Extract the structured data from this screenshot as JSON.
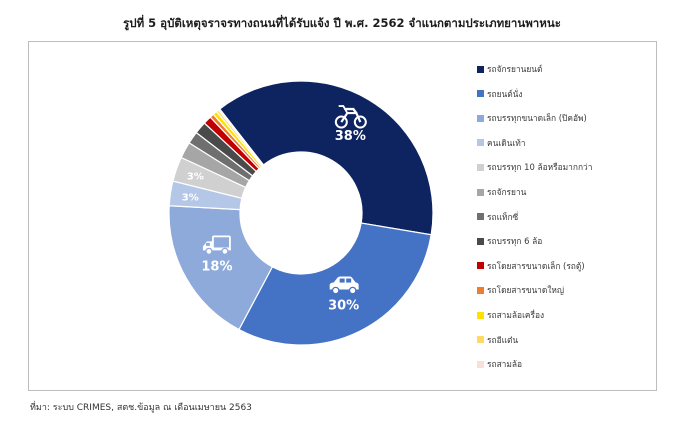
{
  "title": "รูปที่ 5 อุบัติเหตุจราจรทางถนนที่ได้รับแจ้ง ปี พ.ศ. 2562 จำแนกตามประเภทยานพาหนะ",
  "source": "ที่มา: ระบบ CRIMES, สตช.ข้อมูล ณ เดือนเมษายน 2563",
  "chart_data": {
    "type": "pie",
    "donut": true,
    "title": "รูปที่ 5 อุบัติเหตุจราจรทางถนนที่ได้รับแจ้ง ปี พ.ศ. 2562 จำแนกตามประเภทยานพาหนะ",
    "legend_position": "right",
    "categories": [
      "รถจักรยานยนต์",
      "รถยนต์นั่ง",
      "รถบรรทุกขนาดเล็ก (ปิคอัพ)",
      "คนเดินเท้า",
      "รถบรรทุก 10 ล้อหรือมากกว่า",
      "รถจักรยาน",
      "รถแท็กซี่",
      "รถบรรทุก 6 ล้อ",
      "รถโดยสารขนาดเล็ก (รถตู้)",
      "รถโดยสารขนาดใหญ่",
      "รถสามล้อเครื่อง",
      "รถอีแต๋น",
      "รถสามล้อ"
    ],
    "values": [
      38,
      30,
      18,
      3,
      3,
      2,
      1.5,
      1.5,
      1,
      0.5,
      0.5,
      0.3,
      0.2
    ],
    "colors": [
      "#0d2460",
      "#4472c4",
      "#8eaadb",
      "#b4c7e7",
      "#d0d0d0",
      "#a6a6a6",
      "#6f6f6f",
      "#4a4a4a",
      "#c00000",
      "#ed7d31",
      "#ffe000",
      "#ffd966",
      "#f8e0d8"
    ],
    "data_labels": [
      {
        "category": "รถจักรยานยนต์",
        "text": "38%",
        "icon": "motorcycle-icon"
      },
      {
        "category": "รถยนต์นั่ง",
        "text": "30%",
        "icon": "car-icon"
      },
      {
        "category": "รถบรรทุกขนาดเล็ก (ปิคอัพ)",
        "text": "18%",
        "icon": "pickup-truck-icon"
      },
      {
        "category": "คนเดินเท้า",
        "text": "3%"
      },
      {
        "category": "รถบรรทุก 10 ล้อหรือมากกว่า",
        "text": "3%"
      }
    ]
  }
}
